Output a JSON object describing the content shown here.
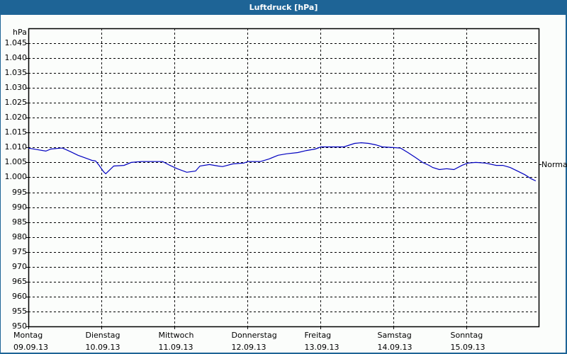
{
  "window": {
    "title": "Luftdruck [hPa]"
  },
  "chart": {
    "unit_label": "hPa",
    "normal_label": "Normal",
    "y_ticks": [
      "1.045",
      "1.040",
      "1.035",
      "1.030",
      "1.025",
      "1.020",
      "1.015",
      "1.010",
      "1.005",
      "1.000",
      "995",
      "990",
      "985",
      "980",
      "975",
      "970",
      "965",
      "960",
      "955",
      "950"
    ],
    "x_ticks": [
      {
        "day": "Montag",
        "date": "09.09.13"
      },
      {
        "day": "Dienstag",
        "date": "10.09.13"
      },
      {
        "day": "Mittwoch",
        "date": "11.09.13"
      },
      {
        "day": "Donnerstag",
        "date": "12.09.13"
      },
      {
        "day": "Freitag",
        "date": "13.09.13"
      },
      {
        "day": "Samstag",
        "date": "14.09.13"
      },
      {
        "day": "Sonntag",
        "date": "15.09.13"
      }
    ],
    "line_color": "#0000c0"
  },
  "chart_data": {
    "type": "line",
    "title": "Luftdruck [hPa]",
    "xlabel": "",
    "ylabel": "hPa",
    "ylim": [
      950,
      1045
    ],
    "grid": true,
    "legend": null,
    "annotations": [
      {
        "text": "Normal",
        "y": 1004.3,
        "position": "right"
      }
    ],
    "categories": [
      "Montag 09.09.13",
      "Dienstag 10.09.13",
      "Mittwoch 11.09.13",
      "Donnerstag 12.09.13",
      "Freitag 13.09.13",
      "Samstag 14.09.13",
      "Sonntag 15.09.13"
    ],
    "x_unit": "days since Montag 09.09.13",
    "series": [
      {
        "name": "Luftdruck",
        "x": [
          0.0,
          0.12,
          0.24,
          0.31,
          0.44,
          0.47,
          0.58,
          0.68,
          0.78,
          0.87,
          0.92,
          0.97,
          1.03,
          1.06,
          1.17,
          1.31,
          1.41,
          1.55,
          1.84,
          1.94,
          2.04,
          2.17,
          2.29,
          2.35,
          2.48,
          2.6,
          2.66,
          2.8,
          2.95,
          3.01,
          3.18,
          3.3,
          3.42,
          3.54,
          3.69,
          3.81,
          3.93,
          4.01,
          4.08,
          4.32,
          4.47,
          4.56,
          4.66,
          4.76,
          4.85,
          5.0,
          5.1,
          5.2,
          5.3,
          5.4,
          5.49,
          5.54,
          5.63,
          5.73,
          5.83,
          5.94,
          6.02,
          6.13,
          6.26,
          6.41,
          6.5,
          6.6,
          6.7,
          6.8,
          6.89,
          6.95
        ],
        "values": [
          1009.8,
          1009.3,
          1008.8,
          1009.5,
          1009.8,
          1009.8,
          1008.6,
          1007.4,
          1006.5,
          1005.7,
          1005.5,
          1004.0,
          1001.9,
          1001.2,
          1003.8,
          1004.0,
          1005.0,
          1005.3,
          1005.3,
          1004.0,
          1002.9,
          1001.7,
          1002.1,
          1003.8,
          1004.3,
          1003.8,
          1003.6,
          1004.5,
          1004.8,
          1005.3,
          1005.3,
          1006.2,
          1007.4,
          1007.9,
          1008.3,
          1009.0,
          1009.5,
          1010.2,
          1010.2,
          1010.2,
          1011.4,
          1011.6,
          1011.4,
          1010.9,
          1010.2,
          1010.0,
          1009.8,
          1008.3,
          1006.7,
          1005.0,
          1004.0,
          1003.3,
          1002.6,
          1002.9,
          1002.6,
          1004.0,
          1004.8,
          1005.0,
          1004.8,
          1004.0,
          1004.0,
          1003.3,
          1002.1,
          1000.9,
          999.5,
          998.8
        ]
      }
    ]
  }
}
